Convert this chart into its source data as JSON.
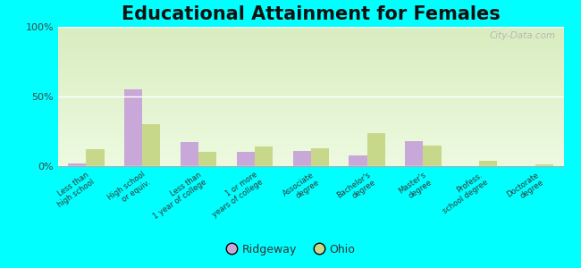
{
  "title": "Educational Attainment for Females",
  "categories": [
    "Less than\nhigh school",
    "High school\nor equiv.",
    "Less than\n1 year of college",
    "1 or more\nyears of college",
    "Associate\ndegree",
    "Bachelor's\ndegree",
    "Master's\ndegree",
    "Profess.\nschool degree",
    "Doctorate\ndegree"
  ],
  "ridgeway_values": [
    2,
    55,
    17,
    10,
    11,
    8,
    18,
    0,
    0
  ],
  "ohio_values": [
    12,
    30,
    10,
    14,
    13,
    24,
    15,
    4,
    1
  ],
  "ridgeway_color": "#c8a8d8",
  "ohio_color": "#c8d88a",
  "bg_color": "#00ffff",
  "title_fontsize": 15,
  "ylabel_ticks": [
    "0%",
    "50%",
    "100%"
  ],
  "ytick_vals": [
    0,
    50,
    100
  ],
  "ylim": [
    0,
    100
  ],
  "legend_labels": [
    "Ridgeway",
    "Ohio"
  ],
  "watermark": "City-Data.com"
}
